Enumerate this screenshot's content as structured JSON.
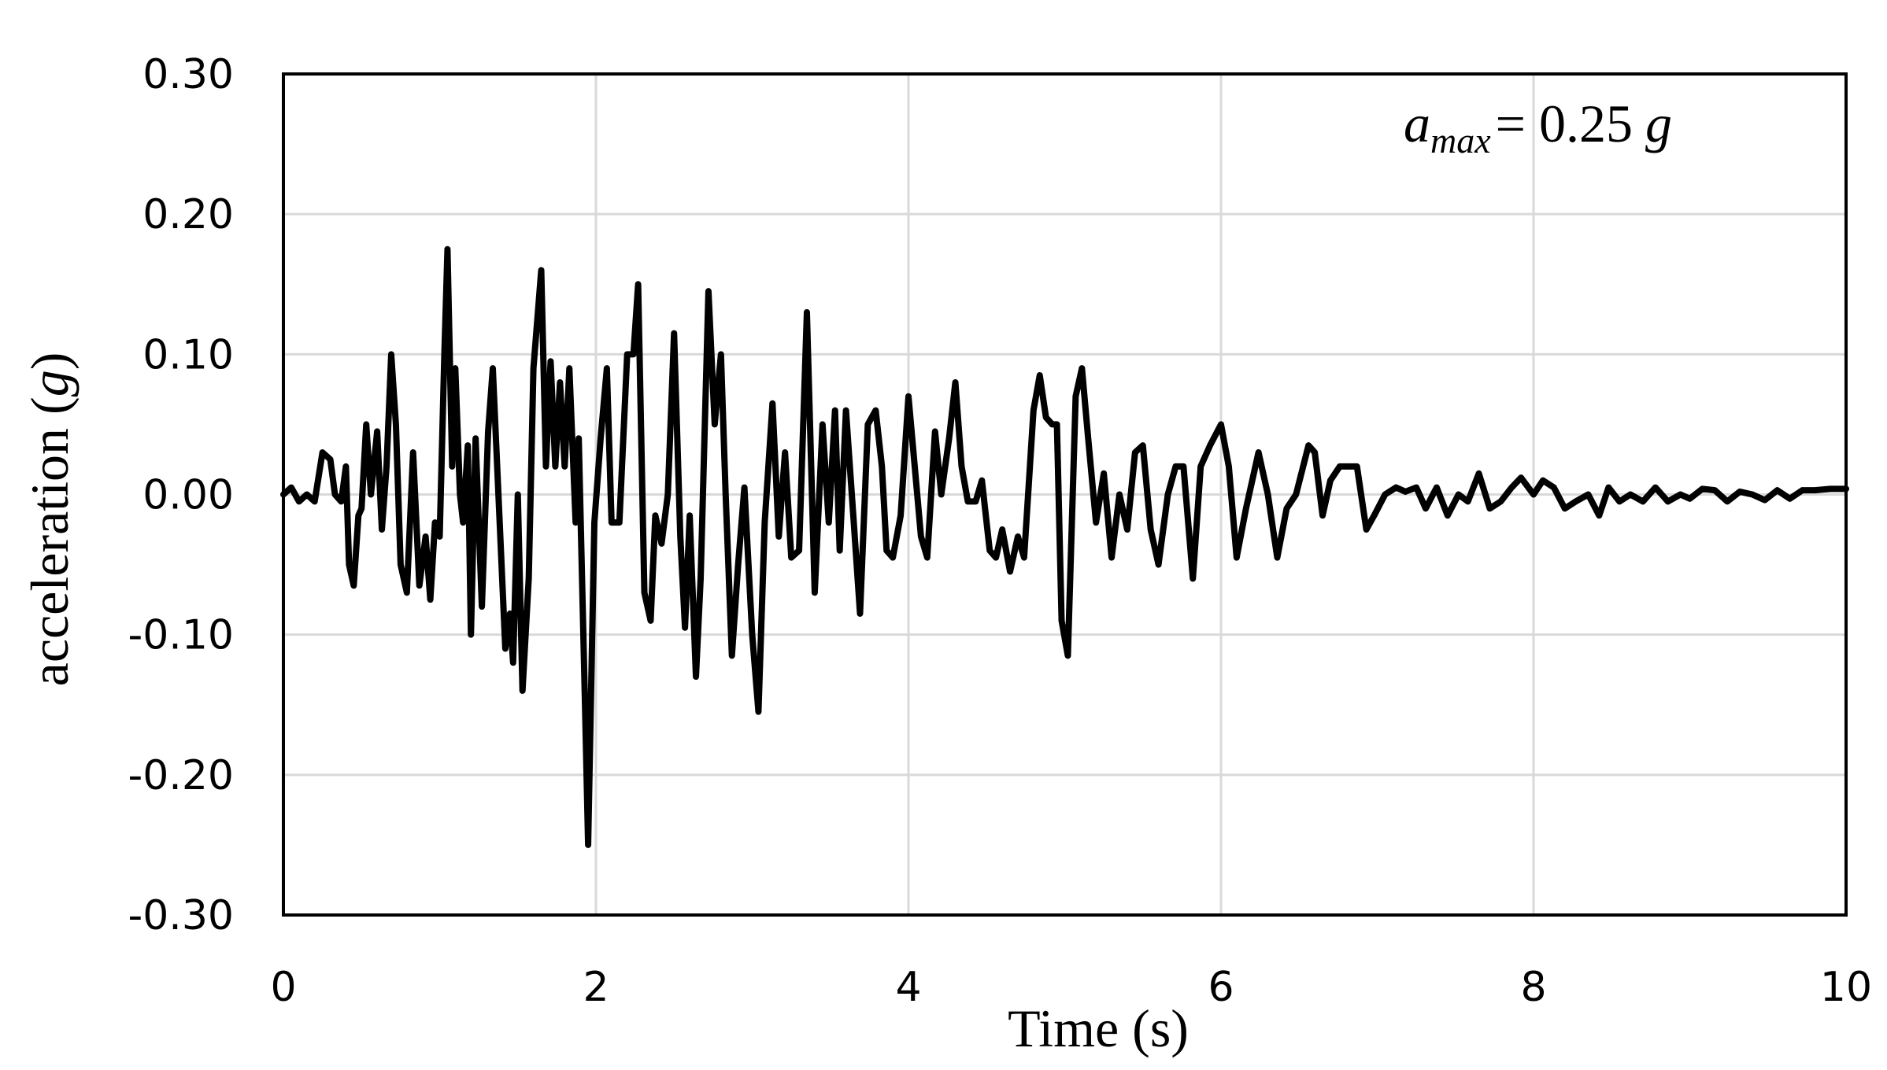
{
  "chart_data": {
    "type": "line",
    "xlabel": "Time (s)",
    "ylabel": [
      "acceleration (",
      "g",
      ")"
    ],
    "annotation": [
      "a",
      "max",
      "= 0.25",
      "g"
    ],
    "color": "#000000",
    "grid": true,
    "xlim": [
      0,
      10
    ],
    "xticks": [
      0,
      2,
      4,
      6,
      8,
      10
    ],
    "ylim": [
      -0.3,
      0.3
    ],
    "yticks": [
      {
        "value": 0.3,
        "label": "0.30"
      },
      {
        "value": 0.2,
        "label": "0.20"
      },
      {
        "value": 0.1,
        "label": "0.10"
      },
      {
        "value": 0,
        "label": "0.00"
      },
      {
        "value": -0.1,
        "label": "-0.10"
      },
      {
        "value": -0.2,
        "label": "-0.20"
      },
      {
        "value": -0.3,
        "label": "-0.30"
      }
    ],
    "x": [
      0,
      0.05,
      0.1,
      0.15,
      0.2,
      0.25,
      0.3,
      0.33,
      0.37,
      0.4,
      0.42,
      0.45,
      0.48,
      0.5,
      0.53,
      0.56,
      0.6,
      0.63,
      0.66,
      0.69,
      0.72,
      0.75,
      0.79,
      0.83,
      0.87,
      0.91,
      0.94,
      0.97,
      1.0,
      1.03,
      1.05,
      1.08,
      1.1,
      1.13,
      1.15,
      1.18,
      1.2,
      1.23,
      1.27,
      1.31,
      1.34,
      1.38,
      1.42,
      1.45,
      1.47,
      1.5,
      1.53,
      1.57,
      1.6,
      1.65,
      1.68,
      1.71,
      1.74,
      1.77,
      1.8,
      1.83,
      1.87,
      1.89,
      1.93,
      1.95,
      1.99,
      2.03,
      2.07,
      2.1,
      2.15,
      2.2,
      2.24,
      2.27,
      2.31,
      2.35,
      2.38,
      2.42,
      2.46,
      2.5,
      2.54,
      2.57,
      2.6,
      2.64,
      2.67,
      2.72,
      2.76,
      2.8,
      2.83,
      2.87,
      2.91,
      2.95,
      3.0,
      3.04,
      3.08,
      3.13,
      3.17,
      3.21,
      3.25,
      3.3,
      3.35,
      3.4,
      3.45,
      3.49,
      3.53,
      3.56,
      3.6,
      3.65,
      3.69,
      3.74,
      3.79,
      3.83,
      3.86,
      3.9,
      3.95,
      4.0,
      4.04,
      4.08,
      4.12,
      4.17,
      4.21,
      4.26,
      4.3,
      4.34,
      4.38,
      4.43,
      4.47,
      4.52,
      4.56,
      4.6,
      4.65,
      4.7,
      4.74,
      4.8,
      4.84,
      4.88,
      4.92,
      4.95,
      4.98,
      5.02,
      5.07,
      5.11,
      5.15,
      5.2,
      5.25,
      5.3,
      5.35,
      5.4,
      5.45,
      5.5,
      5.55,
      5.6,
      5.66,
      5.71,
      5.76,
      5.82,
      5.87,
      5.93,
      6.0,
      6.05,
      6.1,
      6.16,
      6.24,
      6.3,
      6.36,
      6.42,
      6.48,
      6.56,
      6.6,
      6.65,
      6.7,
      6.76,
      6.82,
      6.87,
      6.93,
      6.98,
      7.05,
      7.12,
      7.18,
      7.25,
      7.31,
      7.38,
      7.45,
      7.52,
      7.58,
      7.65,
      7.72,
      7.79,
      7.86,
      7.92,
      8.0,
      8.06,
      8.13,
      8.2,
      8.27,
      8.35,
      8.42,
      8.48,
      8.55,
      8.62,
      8.7,
      8.78,
      8.86,
      8.94,
      9.0,
      9.08,
      9.16,
      9.24,
      9.32,
      9.4,
      9.48,
      9.56,
      9.64,
      9.72,
      9.8,
      9.9,
      10.0
    ],
    "values": [
      0,
      0.005,
      -0.005,
      0.0,
      -0.005,
      0.03,
      0.025,
      0.0,
      -0.005,
      0.02,
      -0.05,
      -0.065,
      -0.015,
      -0.01,
      0.05,
      0.0,
      0.045,
      -0.025,
      0.02,
      0.1,
      0.05,
      -0.05,
      -0.07,
      0.03,
      -0.065,
      -0.03,
      -0.075,
      -0.02,
      -0.03,
      0.1,
      0.175,
      0.02,
      0.09,
      0.0,
      -0.02,
      0.035,
      -0.1,
      0.04,
      -0.08,
      0.045,
      0.09,
      -0.01,
      -0.11,
      -0.085,
      -0.12,
      0.0,
      -0.14,
      -0.06,
      0.09,
      0.16,
      0.02,
      0.095,
      0.02,
      0.08,
      0.02,
      0.09,
      -0.02,
      0.04,
      -0.15,
      -0.25,
      -0.02,
      0.04,
      0.09,
      -0.02,
      -0.02,
      0.1,
      0.1,
      0.15,
      -0.07,
      -0.09,
      -0.015,
      -0.035,
      0.0,
      0.115,
      -0.03,
      -0.095,
      -0.015,
      -0.13,
      -0.06,
      0.145,
      0.05,
      0.1,
      0.0,
      -0.115,
      -0.05,
      0.005,
      -0.1,
      -0.155,
      -0.02,
      0.065,
      -0.03,
      0.03,
      -0.045,
      -0.04,
      0.13,
      -0.07,
      0.05,
      -0.02,
      0.06,
      -0.04,
      0.06,
      -0.02,
      -0.085,
      0.05,
      0.06,
      0.02,
      -0.04,
      -0.045,
      -0.015,
      0.07,
      0.02,
      -0.03,
      -0.045,
      0.045,
      0.0,
      0.04,
      0.08,
      0.02,
      -0.005,
      -0.005,
      0.01,
      -0.04,
      -0.045,
      -0.025,
      -0.055,
      -0.03,
      -0.045,
      0.06,
      0.085,
      0.055,
      0.05,
      0.05,
      -0.09,
      -0.115,
      0.07,
      0.09,
      0.04,
      -0.02,
      0.015,
      -0.045,
      0.0,
      -0.025,
      0.03,
      0.035,
      -0.025,
      -0.05,
      0.0,
      0.02,
      0.02,
      -0.06,
      0.02,
      0.035,
      0.05,
      0.02,
      -0.045,
      -0.01,
      0.03,
      0.0,
      -0.045,
      -0.01,
      0.0,
      0.035,
      0.03,
      -0.015,
      0.01,
      0.02,
      0.02,
      0.02,
      -0.025,
      -0.015,
      0.0,
      0.005,
      0.002,
      0.005,
      -0.01,
      0.005,
      -0.015,
      0.0,
      -0.005,
      0.015,
      -0.01,
      -0.005,
      0.005,
      0.012,
      0.0,
      0.01,
      0.005,
      -0.01,
      -0.005,
      0.0,
      -0.015,
      0.005,
      -0.005,
      0.0,
      -0.005,
      0.005,
      -0.005,
      0.0,
      -0.003,
      0.004,
      0.003,
      -0.005,
      0.002,
      0.0,
      -0.004,
      0.003,
      -0.003,
      0.003,
      0.003,
      0.004,
      0.004
    ]
  }
}
